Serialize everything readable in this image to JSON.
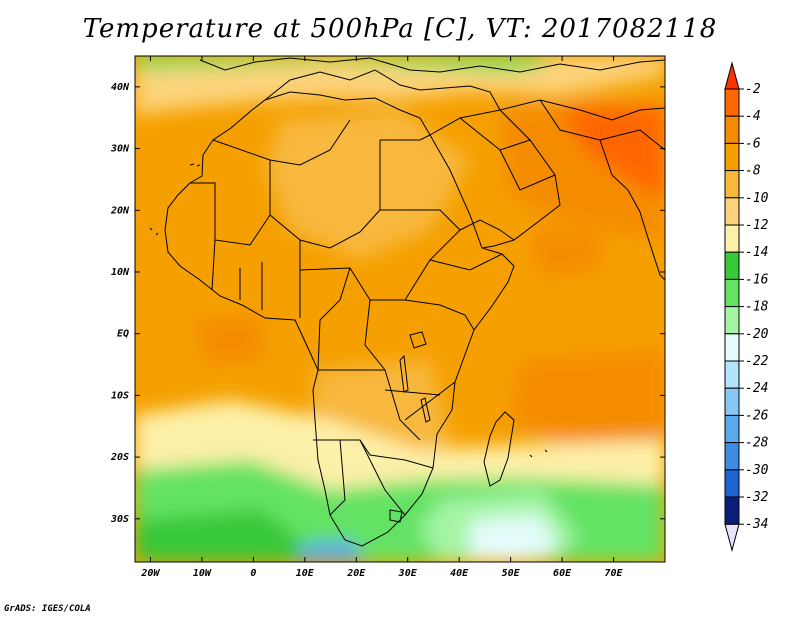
{
  "title": "Temperature at 500hPa [C], VT: 2017082118",
  "credit": "GrADS: IGES/COLA",
  "map": {
    "lon_range": [
      -23,
      80
    ],
    "lat_range": [
      -37,
      45
    ],
    "lon_ticks": [
      {
        "value": -20,
        "label": "20W"
      },
      {
        "value": -10,
        "label": "10W"
      },
      {
        "value": 0,
        "label": "0"
      },
      {
        "value": 10,
        "label": "10E"
      },
      {
        "value": 20,
        "label": "20E"
      },
      {
        "value": 30,
        "label": "30E"
      },
      {
        "value": 40,
        "label": "40E"
      },
      {
        "value": 50,
        "label": "50E"
      },
      {
        "value": 60,
        "label": "60E"
      },
      {
        "value": 70,
        "label": "70E"
      }
    ],
    "lat_ticks": [
      {
        "value": 40,
        "label": "40N"
      },
      {
        "value": 30,
        "label": "30N"
      },
      {
        "value": 20,
        "label": "20N"
      },
      {
        "value": 10,
        "label": "10N"
      },
      {
        "value": 0,
        "label": "EQ"
      },
      {
        "value": -10,
        "label": "10S"
      },
      {
        "value": -20,
        "label": "20S"
      },
      {
        "value": -30,
        "label": "30S"
      }
    ]
  },
  "colorbar": {
    "levels": [
      {
        "label": "-2",
        "color": "#ff6600"
      },
      {
        "label": "-4",
        "color": "#f58c00"
      },
      {
        "label": "-6",
        "color": "#f5a000"
      },
      {
        "label": "-8",
        "color": "#f7b83c"
      },
      {
        "label": "-10",
        "color": "#fcd37c"
      },
      {
        "label": "-12",
        "color": "#fdf0a8"
      },
      {
        "label": "-14",
        "color": "#38c838"
      },
      {
        "label": "-16",
        "color": "#64e264"
      },
      {
        "label": "-18",
        "color": "#a4f4a4"
      },
      {
        "label": "-20",
        "color": "#e4fcfc"
      },
      {
        "label": "-22",
        "color": "#b4e4fc"
      },
      {
        "label": "-24",
        "color": "#88c8f4"
      },
      {
        "label": "-26",
        "color": "#5ca8ec"
      },
      {
        "label": "-28",
        "color": "#3c8ce4"
      },
      {
        "label": "-30",
        "color": "#1e64d2"
      },
      {
        "label": "-32",
        "color": "#1042b4"
      },
      {
        "label": "-34",
        "color": "#0a1e78"
      }
    ],
    "top_cap_color": "#ff3200",
    "bottom_cap_color": "#e4e4fc"
  }
}
